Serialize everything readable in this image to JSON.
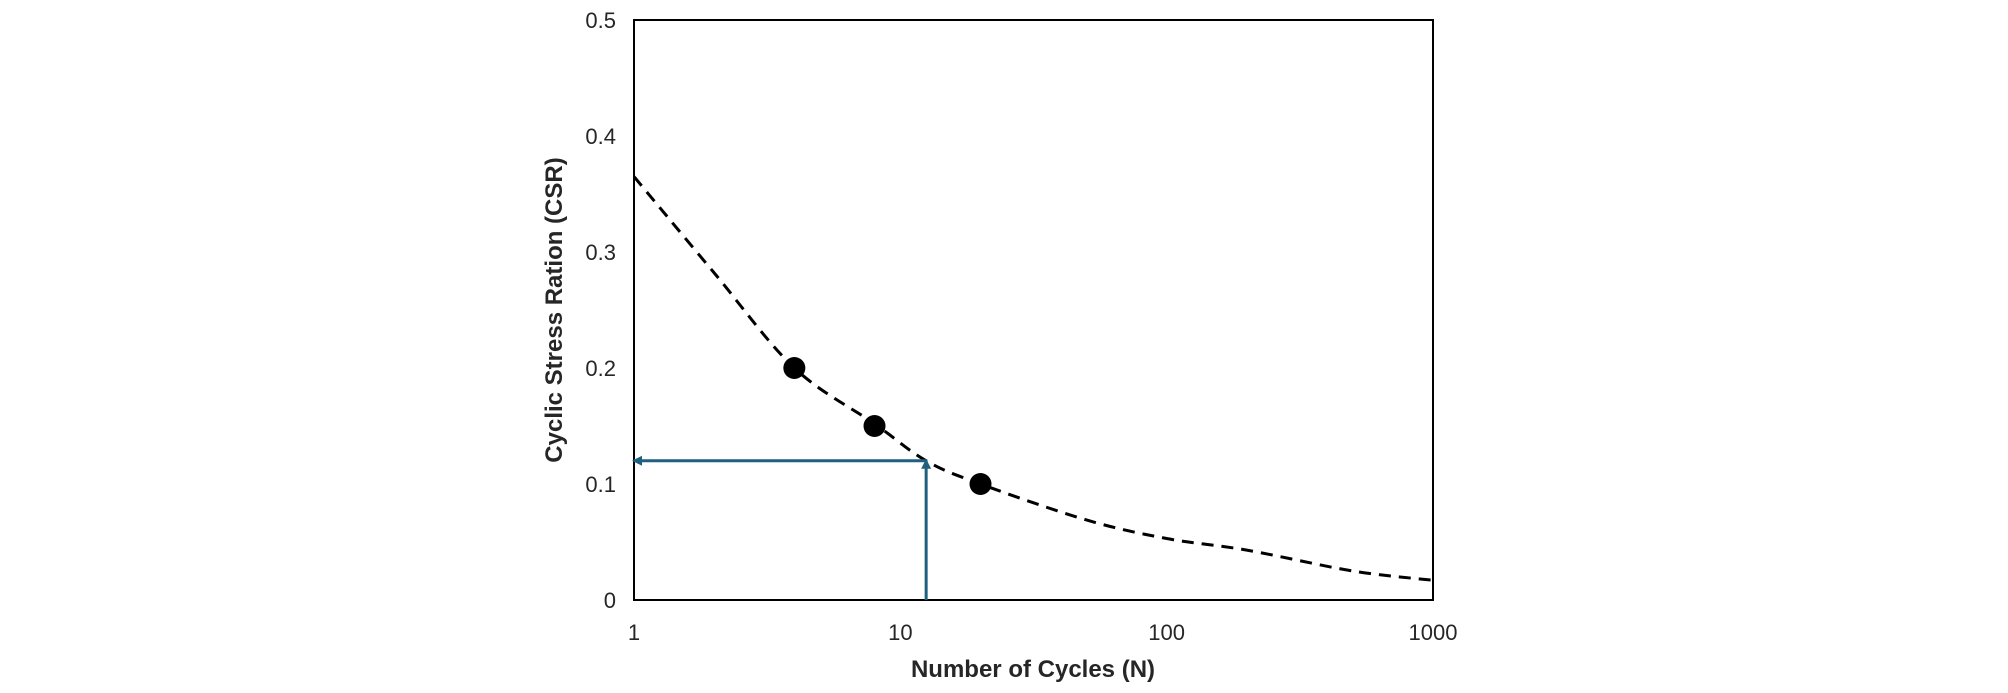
{
  "chart_data": {
    "type": "scatter",
    "title": "",
    "xlabel": "Number of Cycles (N)",
    "ylabel": "Cyclic Stress Ration (CSR)",
    "xscale": "log",
    "xlim": [
      1,
      1000
    ],
    "ylim": [
      0,
      0.5
    ],
    "x_ticks": [
      1,
      10,
      100,
      1000
    ],
    "x_tick_labels": [
      "1",
      "10",
      "100",
      "1000"
    ],
    "y_ticks": [
      0,
      0.1,
      0.2,
      0.3,
      0.4,
      0.5
    ],
    "y_tick_labels": [
      "0",
      "0.1",
      "0.2",
      "0.3",
      "0.4",
      "0.5"
    ],
    "grid": false,
    "legend": "none",
    "series": [
      {
        "type": "scatter",
        "marker_color": "#000000",
        "x": [
          4,
          8,
          20
        ],
        "y": [
          0.2,
          0.15,
          0.1
        ]
      },
      {
        "type": "line",
        "style": "dashed",
        "line_color": "#000000",
        "x": [
          1,
          2,
          4,
          8,
          12.5,
          20,
          50,
          100,
          200,
          500,
          1000
        ],
        "y": [
          0.365,
          0.282,
          0.2,
          0.152,
          0.12,
          0.1,
          0.069,
          0.053,
          0.043,
          0.025,
          0.017
        ]
      }
    ],
    "annotations": [
      {
        "type": "arrow",
        "color": "#1f5f7f",
        "from": [
          12.5,
          0
        ],
        "to": [
          12.5,
          0.12
        ]
      },
      {
        "type": "arrow",
        "color": "#1f5f7f",
        "from": [
          12.5,
          0.12
        ],
        "to": [
          1,
          0.12
        ]
      }
    ]
  }
}
